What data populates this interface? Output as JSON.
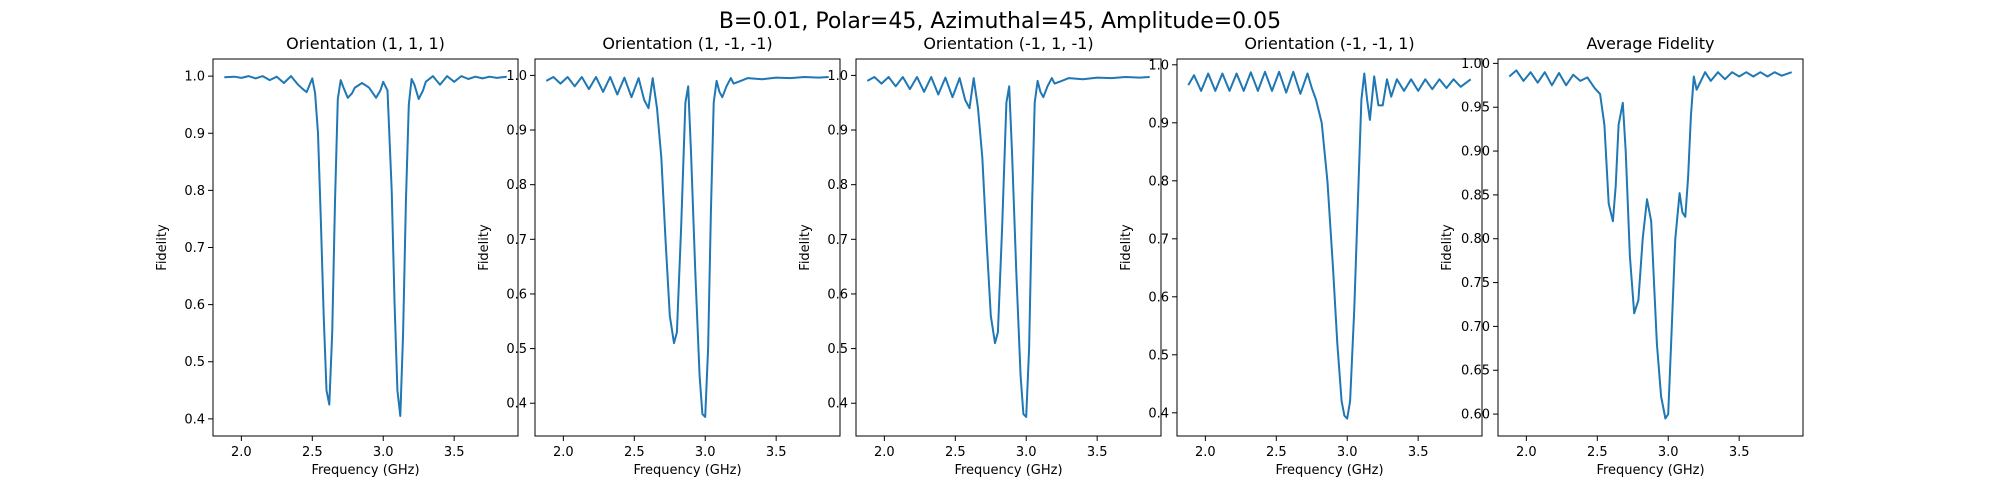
{
  "figure": {
    "suptitle": "B=0.01, Polar=45, Azimuthal=45, Amplitude=0.05"
  },
  "chart_data": [
    {
      "type": "line",
      "title": "Orientation (1, 1, 1)",
      "xlabel": "Frequency (GHz)",
      "ylabel": "Fidelity",
      "xlim": [
        1.8,
        3.95
      ],
      "ylim": [
        0.37,
        1.03
      ],
      "xticks": [
        2.0,
        2.5,
        3.0,
        3.5
      ],
      "xtick_labels": [
        "2.0",
        "2.5",
        "3.0",
        "3.5"
      ],
      "yticks": [
        0.4,
        0.5,
        0.6,
        0.7,
        0.8,
        0.9,
        1.0
      ],
      "ytick_labels": [
        "0.4",
        "0.5",
        "0.6",
        "0.7",
        "0.8",
        "0.9",
        "1.0"
      ],
      "color": "#1f77b4",
      "x": [
        1.88,
        1.95,
        2.0,
        2.05,
        2.1,
        2.15,
        2.2,
        2.25,
        2.3,
        2.35,
        2.4,
        2.43,
        2.46,
        2.5,
        2.52,
        2.54,
        2.56,
        2.58,
        2.6,
        2.62,
        2.64,
        2.66,
        2.68,
        2.7,
        2.72,
        2.75,
        2.78,
        2.8,
        2.85,
        2.9,
        2.95,
        2.98,
        3.0,
        3.03,
        3.06,
        3.08,
        3.1,
        3.12,
        3.14,
        3.16,
        3.18,
        3.2,
        3.22,
        3.25,
        3.28,
        3.3,
        3.35,
        3.4,
        3.45,
        3.5,
        3.55,
        3.6,
        3.65,
        3.7,
        3.75,
        3.8,
        3.87
      ],
      "y": [
        0.998,
        0.999,
        0.997,
        1.0,
        0.996,
        1.0,
        0.993,
        0.999,
        0.988,
        1.0,
        0.985,
        0.978,
        0.972,
        0.996,
        0.97,
        0.9,
        0.75,
        0.58,
        0.45,
        0.425,
        0.55,
        0.78,
        0.96,
        0.993,
        0.98,
        0.962,
        0.97,
        0.98,
        0.988,
        0.98,
        0.962,
        0.975,
        0.99,
        0.975,
        0.8,
        0.6,
        0.45,
        0.405,
        0.55,
        0.78,
        0.95,
        0.995,
        0.985,
        0.96,
        0.975,
        0.99,
        1.0,
        0.985,
        1.0,
        0.99,
        1.0,
        0.995,
        0.999,
        0.996,
        0.999,
        0.997,
        0.999
      ]
    },
    {
      "type": "line",
      "title": "Orientation (1, -1, -1)",
      "xlabel": "Frequency (GHz)",
      "ylabel": "Fidelity",
      "xlim": [
        1.8,
        3.95
      ],
      "ylim": [
        0.34,
        1.03
      ],
      "xticks": [
        2.0,
        2.5,
        3.0,
        3.5
      ],
      "xtick_labels": [
        "2.0",
        "2.5",
        "3.0",
        "3.5"
      ],
      "yticks": [
        0.4,
        0.5,
        0.6,
        0.7,
        0.8,
        0.9,
        1.0
      ],
      "ytick_labels": [
        "0.4",
        "0.5",
        "0.6",
        "0.7",
        "0.8",
        "0.9",
        "1.0"
      ],
      "color": "#1f77b4",
      "x": [
        1.88,
        1.93,
        1.98,
        2.03,
        2.08,
        2.13,
        2.18,
        2.23,
        2.28,
        2.33,
        2.38,
        2.43,
        2.48,
        2.53,
        2.57,
        2.6,
        2.63,
        2.66,
        2.69,
        2.72,
        2.75,
        2.78,
        2.8,
        2.83,
        2.86,
        2.88,
        2.9,
        2.93,
        2.96,
        2.98,
        3.0,
        3.02,
        3.04,
        3.06,
        3.08,
        3.1,
        3.12,
        3.15,
        3.18,
        3.2,
        3.25,
        3.3,
        3.4,
        3.5,
        3.6,
        3.7,
        3.8,
        3.87
      ],
      "y": [
        0.99,
        0.997,
        0.985,
        0.997,
        0.98,
        0.997,
        0.975,
        0.997,
        0.97,
        0.997,
        0.965,
        0.996,
        0.96,
        0.995,
        0.955,
        0.94,
        0.995,
        0.94,
        0.85,
        0.7,
        0.56,
        0.51,
        0.53,
        0.72,
        0.95,
        0.98,
        0.86,
        0.64,
        0.45,
        0.38,
        0.375,
        0.5,
        0.75,
        0.95,
        0.99,
        0.97,
        0.96,
        0.98,
        0.995,
        0.985,
        0.99,
        0.995,
        0.993,
        0.996,
        0.995,
        0.997,
        0.996,
        0.997
      ]
    },
    {
      "type": "line",
      "title": "Orientation (-1, 1, -1)",
      "xlabel": "Frequency (GHz)",
      "ylabel": "Fidelity",
      "xlim": [
        1.8,
        3.95
      ],
      "ylim": [
        0.34,
        1.03
      ],
      "xticks": [
        2.0,
        2.5,
        3.0,
        3.5
      ],
      "xtick_labels": [
        "2.0",
        "2.5",
        "3.0",
        "3.5"
      ],
      "yticks": [
        0.4,
        0.5,
        0.6,
        0.7,
        0.8,
        0.9,
        1.0
      ],
      "ytick_labels": [
        "0.4",
        "0.5",
        "0.6",
        "0.7",
        "0.8",
        "0.9",
        "1.0"
      ],
      "color": "#1f77b4",
      "x": [
        1.88,
        1.93,
        1.98,
        2.03,
        2.08,
        2.13,
        2.18,
        2.23,
        2.28,
        2.33,
        2.38,
        2.43,
        2.48,
        2.53,
        2.57,
        2.6,
        2.63,
        2.66,
        2.69,
        2.72,
        2.75,
        2.78,
        2.8,
        2.83,
        2.86,
        2.88,
        2.9,
        2.93,
        2.96,
        2.98,
        3.0,
        3.02,
        3.04,
        3.06,
        3.08,
        3.1,
        3.12,
        3.15,
        3.18,
        3.2,
        3.25,
        3.3,
        3.4,
        3.5,
        3.6,
        3.7,
        3.8,
        3.87
      ],
      "y": [
        0.99,
        0.997,
        0.985,
        0.997,
        0.98,
        0.997,
        0.975,
        0.997,
        0.97,
        0.997,
        0.965,
        0.996,
        0.96,
        0.995,
        0.955,
        0.94,
        0.995,
        0.94,
        0.85,
        0.7,
        0.56,
        0.51,
        0.53,
        0.72,
        0.95,
        0.98,
        0.86,
        0.64,
        0.45,
        0.38,
        0.375,
        0.5,
        0.75,
        0.95,
        0.99,
        0.97,
        0.96,
        0.98,
        0.995,
        0.985,
        0.99,
        0.995,
        0.993,
        0.996,
        0.995,
        0.997,
        0.996,
        0.997
      ]
    },
    {
      "type": "line",
      "title": "Orientation (-1, -1, 1)",
      "xlabel": "Frequency (GHz)",
      "ylabel": "Fidelity",
      "xlim": [
        1.8,
        3.95
      ],
      "ylim": [
        0.36,
        1.01
      ],
      "xticks": [
        2.0,
        2.5,
        3.0,
        3.5
      ],
      "xtick_labels": [
        "2.0",
        "2.5",
        "3.0",
        "3.5"
      ],
      "yticks": [
        0.4,
        0.5,
        0.6,
        0.7,
        0.8,
        0.9,
        1.0
      ],
      "ytick_labels": [
        "0.4",
        "0.5",
        "0.6",
        "0.7",
        "0.8",
        "0.9",
        "1.0"
      ],
      "color": "#1f77b4",
      "x": [
        1.88,
        1.92,
        1.97,
        2.02,
        2.07,
        2.12,
        2.17,
        2.22,
        2.27,
        2.32,
        2.37,
        2.42,
        2.47,
        2.52,
        2.57,
        2.62,
        2.67,
        2.72,
        2.75,
        2.78,
        2.82,
        2.86,
        2.9,
        2.93,
        2.96,
        2.98,
        3.0,
        3.02,
        3.05,
        3.08,
        3.1,
        3.12,
        3.14,
        3.16,
        3.19,
        3.22,
        3.25,
        3.28,
        3.31,
        3.35,
        3.4,
        3.45,
        3.5,
        3.55,
        3.6,
        3.65,
        3.7,
        3.75,
        3.8,
        3.87
      ],
      "y": [
        0.965,
        0.982,
        0.955,
        0.985,
        0.955,
        0.985,
        0.955,
        0.985,
        0.955,
        0.987,
        0.955,
        0.988,
        0.955,
        0.988,
        0.952,
        0.988,
        0.95,
        0.985,
        0.96,
        0.94,
        0.9,
        0.8,
        0.65,
        0.52,
        0.42,
        0.395,
        0.39,
        0.42,
        0.58,
        0.8,
        0.94,
        0.985,
        0.94,
        0.905,
        0.98,
        0.93,
        0.93,
        0.975,
        0.945,
        0.975,
        0.955,
        0.975,
        0.955,
        0.975,
        0.958,
        0.975,
        0.96,
        0.975,
        0.962,
        0.975
      ]
    },
    {
      "type": "line",
      "title": "Average Fidelity",
      "xlabel": "Frequency (GHz)",
      "ylabel": "Fidelity",
      "xlim": [
        1.8,
        3.95
      ],
      "ylim": [
        0.575,
        1.005
      ],
      "xticks": [
        2.0,
        2.5,
        3.0,
        3.5
      ],
      "xtick_labels": [
        "2.0",
        "2.5",
        "3.0",
        "3.5"
      ],
      "yticks": [
        0.6,
        0.65,
        0.7,
        0.75,
        0.8,
        0.85,
        0.9,
        0.95,
        1.0
      ],
      "ytick_labels": [
        "0.60",
        "0.65",
        "0.70",
        "0.75",
        "0.80",
        "0.85",
        "0.90",
        "0.95",
        "1.00"
      ],
      "color": "#1f77b4",
      "x": [
        1.88,
        1.93,
        1.98,
        2.03,
        2.08,
        2.13,
        2.18,
        2.23,
        2.28,
        2.33,
        2.38,
        2.43,
        2.48,
        2.52,
        2.55,
        2.58,
        2.61,
        2.63,
        2.65,
        2.68,
        2.7,
        2.73,
        2.76,
        2.79,
        2.82,
        2.85,
        2.88,
        2.9,
        2.92,
        2.95,
        2.98,
        3.0,
        3.02,
        3.05,
        3.08,
        3.1,
        3.12,
        3.14,
        3.16,
        3.18,
        3.2,
        3.23,
        3.26,
        3.3,
        3.35,
        3.4,
        3.45,
        3.5,
        3.55,
        3.6,
        3.65,
        3.7,
        3.75,
        3.8,
        3.87
      ],
      "y": [
        0.985,
        0.992,
        0.98,
        0.99,
        0.978,
        0.99,
        0.975,
        0.989,
        0.975,
        0.987,
        0.98,
        0.984,
        0.972,
        0.965,
        0.93,
        0.84,
        0.82,
        0.86,
        0.93,
        0.955,
        0.9,
        0.78,
        0.715,
        0.73,
        0.8,
        0.845,
        0.82,
        0.75,
        0.68,
        0.62,
        0.595,
        0.6,
        0.68,
        0.8,
        0.852,
        0.83,
        0.825,
        0.87,
        0.94,
        0.985,
        0.97,
        0.98,
        0.99,
        0.98,
        0.99,
        0.982,
        0.99,
        0.985,
        0.99,
        0.985,
        0.99,
        0.985,
        0.99,
        0.986,
        0.99
      ]
    }
  ]
}
